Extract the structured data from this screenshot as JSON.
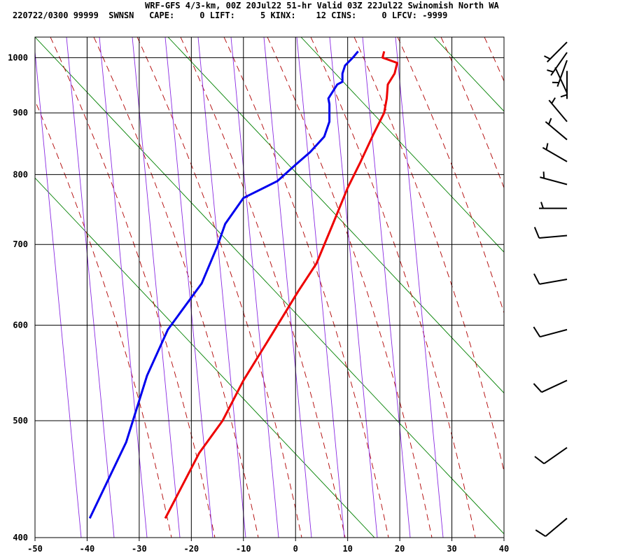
{
  "header": {
    "line1": "WRF-GFS 4/3-km, 00Z 20Jul22 51-hr Valid 03Z 22Jul22 Swinomish North WA",
    "line2": "220722/0300 99999  SWNSN   CAPE:     0 LIFT:     5 KINX:    12 CINS:     0 LFCV: -9999"
  },
  "chart_data": {
    "type": "line",
    "title": "",
    "xlabel": "",
    "ylabel": "",
    "x_ticks": [
      -50,
      -40,
      -30,
      -20,
      -10,
      0,
      10,
      20,
      30,
      40
    ],
    "y_ticks": [
      400,
      500,
      600,
      700,
      800,
      900,
      1000
    ],
    "xlim": [
      -50,
      40
    ],
    "ylim": [
      1040,
      400
    ],
    "y_scale": "log",
    "grid": true,
    "background_lines": {
      "dry_adiabats_color": "#008000",
      "moist_adiabats_color": "#b00000",
      "mixing_ratio_color": "#8a2be2"
    },
    "series": [
      {
        "color": "#ee0000",
        "x": [
          17.0,
          16.7,
          19.5,
          19.0,
          17.7,
          17.5,
          17.0,
          15.0,
          12.5,
          10.0,
          7.0,
          4.0,
          0.5,
          -4.5,
          -10.0,
          -14.0,
          -18.5,
          -25.0
        ],
        "y": [
          1012,
          1000,
          990,
          970,
          950,
          925,
          900,
          865,
          820,
          780,
          725,
          675,
          640,
          590,
          540,
          500,
          470,
          415
        ]
      },
      {
        "color": "#0000ee",
        "x": [
          12.0,
          11.0,
          9.5,
          9.0,
          9.0,
          8.0,
          6.3,
          6.5,
          6.5,
          5.5,
          2.8,
          0.0,
          -3.5,
          -10.0,
          -13.5,
          -15.0,
          -18.0,
          -24.5,
          -28.5,
          -32.5,
          -39.5
        ],
        "y": [
          1012,
          1000,
          985,
          970,
          955,
          950,
          925,
          915,
          885,
          860,
          835,
          815,
          790,
          765,
          728,
          698,
          650,
          595,
          545,
          480,
          415
        ]
      }
    ],
    "wind_barbs": [
      {
        "pressure": 415,
        "direction_deg": 230,
        "speed_kt": 10
      },
      {
        "pressure": 475,
        "direction_deg": 235,
        "speed_kt": 10
      },
      {
        "pressure": 540,
        "direction_deg": 245,
        "speed_kt": 10
      },
      {
        "pressure": 595,
        "direction_deg": 255,
        "speed_kt": 10
      },
      {
        "pressure": 655,
        "direction_deg": 260,
        "speed_kt": 10
      },
      {
        "pressure": 712,
        "direction_deg": 265,
        "speed_kt": 10
      },
      {
        "pressure": 750,
        "direction_deg": 270,
        "speed_kt": 5
      },
      {
        "pressure": 785,
        "direction_deg": 285,
        "speed_kt": 5
      },
      {
        "pressure": 820,
        "direction_deg": 300,
        "speed_kt": 5
      },
      {
        "pressure": 855,
        "direction_deg": 310,
        "speed_kt": 5
      },
      {
        "pressure": 885,
        "direction_deg": 320,
        "speed_kt": 5
      },
      {
        "pressure": 935,
        "direction_deg": 335,
        "speed_kt": 0
      },
      {
        "pressure": 975,
        "direction_deg": 180,
        "speed_kt": 5
      },
      {
        "pressure": 995,
        "direction_deg": 200,
        "speed_kt": 5
      },
      {
        "pressure": 1010,
        "direction_deg": 215,
        "speed_kt": 5
      },
      {
        "pressure": 1030,
        "direction_deg": 225,
        "speed_kt": 5
      }
    ]
  }
}
